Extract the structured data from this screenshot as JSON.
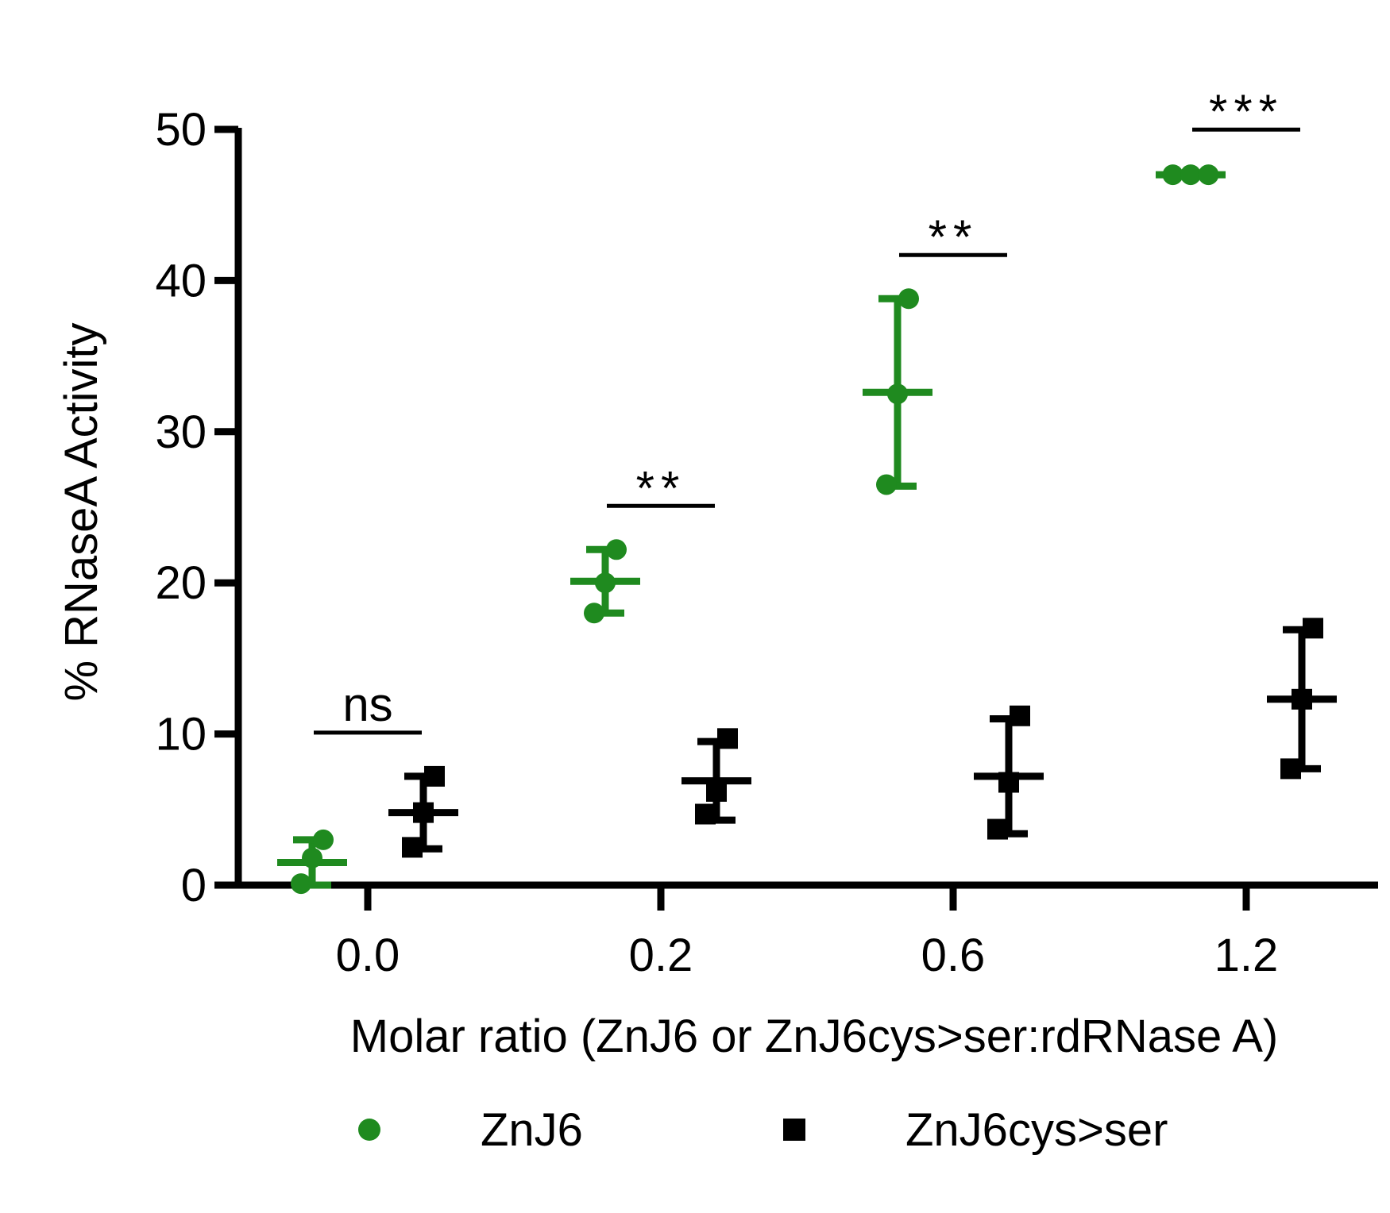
{
  "chart_data": {
    "type": "scatter",
    "xlabel": "Molar ratio (ZnJ6 or ZnJ6cys>ser:rdRNase A)",
    "ylabel": "% RNaseA Activity",
    "ylim": [
      0,
      50
    ],
    "y_ticks": [
      "0",
      "10",
      "20",
      "30",
      "40",
      "50"
    ],
    "categories": [
      "0.0",
      "0.2",
      "0.6",
      "1.2"
    ],
    "legend_position": "bottom",
    "grid": false,
    "series": [
      {
        "name": "ZnJ6",
        "color": "#1f8a1f",
        "marker": "circle",
        "points": [
          [
            0.1,
            1.8,
            3.0
          ],
          [
            18.0,
            20.0,
            22.2
          ],
          [
            26.5,
            32.5,
            38.8
          ],
          [
            47.0,
            47.0,
            47.0
          ]
        ],
        "mean": [
          1.5,
          20.1,
          32.6,
          47.0
        ],
        "sd": [
          1.5,
          2.1,
          6.2,
          0.1
        ]
      },
      {
        "name": "ZnJ6cys>ser",
        "color": "#000000",
        "marker": "square",
        "points": [
          [
            2.5,
            4.8,
            7.2
          ],
          [
            4.7,
            6.2,
            9.7
          ],
          [
            3.7,
            6.8,
            11.2
          ],
          [
            7.7,
            12.3,
            17.0
          ]
        ],
        "mean": [
          4.8,
          6.9,
          7.2,
          12.3
        ],
        "sd": [
          2.4,
          2.6,
          3.8,
          4.6
        ]
      }
    ],
    "significance": [
      "ns",
      "**",
      "**",
      "***"
    ]
  }
}
